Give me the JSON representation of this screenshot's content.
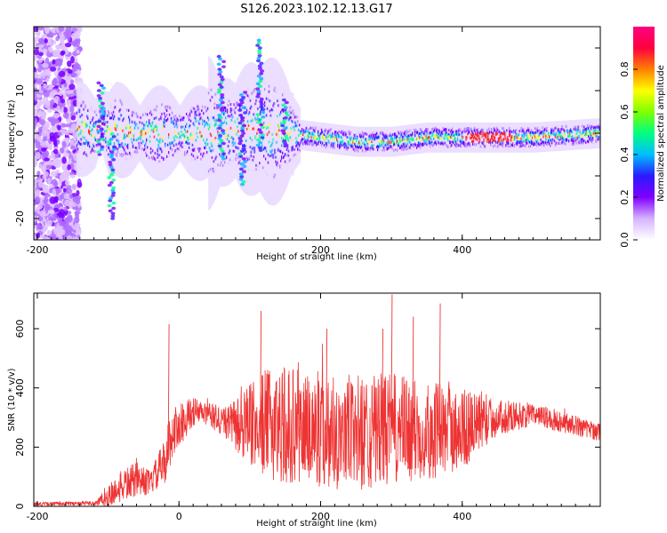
{
  "title": "S126.2023.102.12.13.G17",
  "chart_data": [
    {
      "type": "heatmap",
      "xlabel": "Height of straight line (km)",
      "ylabel": "Frequency (Hz)",
      "xlim": [
        -205,
        595
      ],
      "ylim": [
        -25,
        25
      ],
      "x_ticks": [
        -200,
        0,
        200,
        400
      ],
      "y_ticks": [
        -20,
        -10,
        0,
        10,
        20
      ],
      "colorbar": {
        "label": "Normalized spectral amplitude",
        "range": [
          0,
          1
        ],
        "ticks": [
          0.0,
          0.2,
          0.4,
          0.6,
          0.8
        ],
        "colormap": [
          "#ffffff",
          "#d6b3ff",
          "#8000ff",
          "#2a1bff",
          "#00bfff",
          "#00ff80",
          "#7fff00",
          "#ffff00",
          "#ff8000",
          "#ff0040",
          "#ff0080"
        ]
      },
      "ridge": {
        "x": [
          -140,
          -120,
          -110,
          -100,
          -90,
          -70,
          -50,
          -30,
          0,
          50,
          100,
          150,
          200,
          250,
          300,
          350,
          400,
          450,
          500,
          595
        ],
        "y": [
          1,
          0,
          3,
          0,
          1,
          0,
          0,
          0,
          0,
          0,
          1,
          0,
          -1,
          -2,
          -2,
          -1,
          -1,
          -1,
          -1,
          0
        ]
      }
    },
    {
      "type": "line",
      "xlabel": "Height of straight line (km)",
      "ylabel": "SNR (10 * v/v)",
      "xlim": [
        -205,
        595
      ],
      "ylim": [
        0,
        720
      ],
      "x_ticks": [
        -200,
        0,
        200,
        400
      ],
      "y_ticks": [
        0,
        200,
        400,
        600
      ],
      "color": "#ee3333",
      "envelope": {
        "x": [
          -205,
          -120,
          -100,
          -80,
          -60,
          -40,
          -20,
          -12,
          -5,
          20,
          40,
          70,
          90,
          120,
          150,
          200,
          250,
          300,
          350,
          400,
          450,
          500,
          550,
          595
        ],
        "mean": [
          8,
          10,
          30,
          70,
          90,
          80,
          150,
          230,
          260,
          320,
          310,
          280,
          270,
          280,
          275,
          260,
          250,
          260,
          255,
          260,
          300,
          310,
          280,
          250
        ],
        "spread": [
          6,
          8,
          35,
          55,
          60,
          40,
          80,
          90,
          80,
          50,
          40,
          60,
          120,
          180,
          200,
          200,
          200,
          190,
          170,
          140,
          60,
          40,
          35,
          30
        ]
      },
      "peaks": [
        [
          -15,
          615
        ],
        [
          115,
          660
        ],
        [
          208,
          600
        ],
        [
          287,
          600
        ],
        [
          300,
          715
        ],
        [
          330,
          640
        ],
        [
          368,
          685
        ]
      ]
    }
  ]
}
